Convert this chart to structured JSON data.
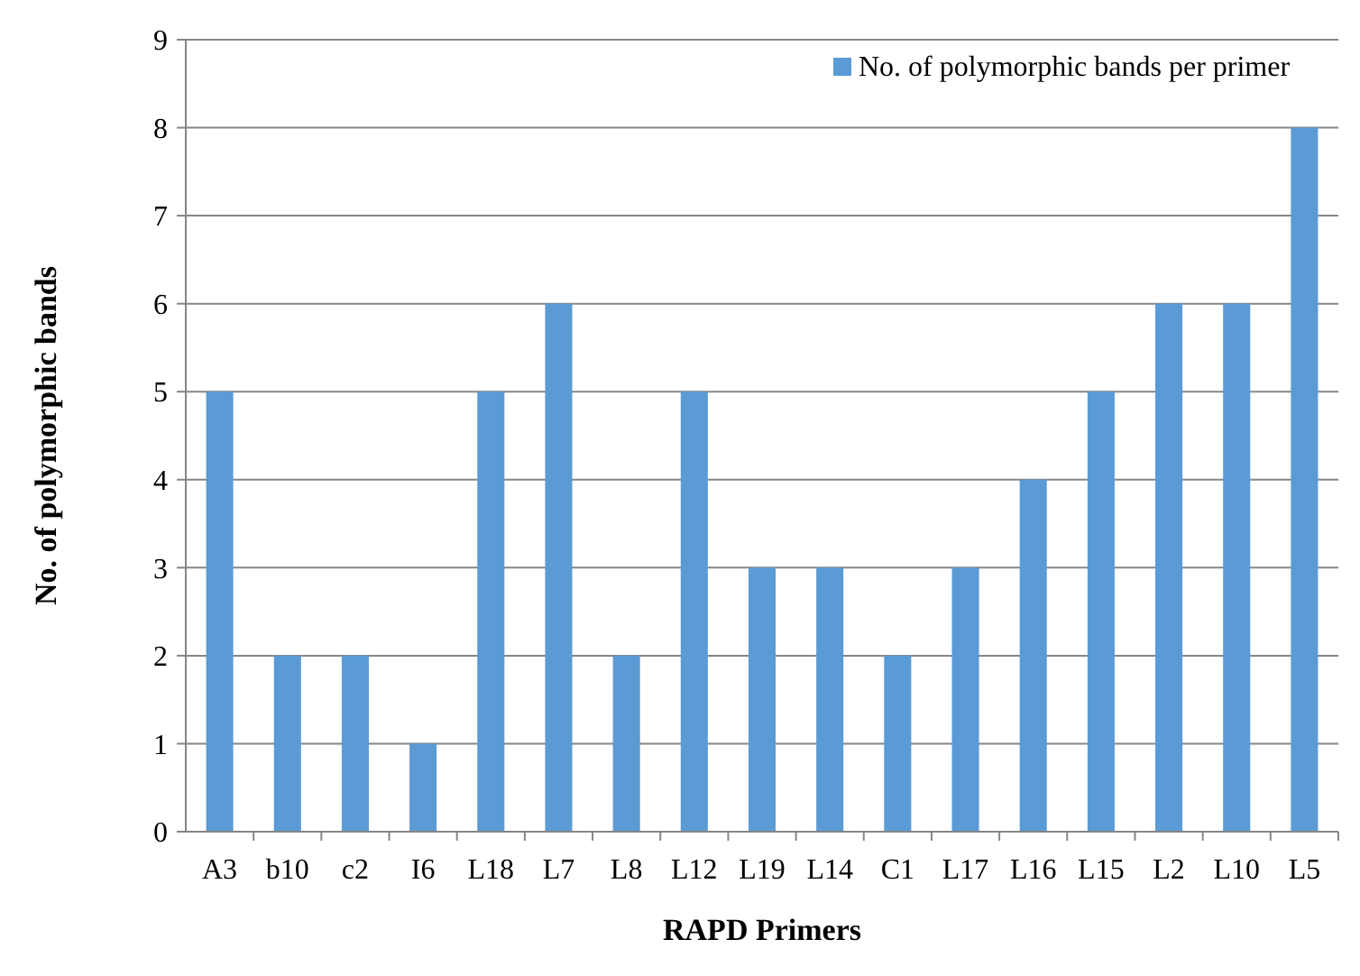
{
  "chart_data": {
    "type": "bar",
    "xlabel": "RAPD Primers",
    "ylabel": "No. of polymorphic bands",
    "categories": [
      "A3",
      "b10",
      "c2",
      "I6",
      "L18",
      "L7",
      "L8",
      "L12",
      "L19",
      "L14",
      "C1",
      "L17",
      "L16",
      "L15",
      "L2",
      "L10",
      "L5"
    ],
    "series": [
      {
        "name": "No. of polymorphic bands per primer",
        "color": "#5b9bd5",
        "values": [
          5,
          2,
          2,
          1,
          5,
          6,
          2,
          5,
          3,
          3,
          2,
          3,
          4,
          5,
          6,
          6,
          8
        ]
      }
    ],
    "ylim": [
      0,
      9
    ],
    "yticks": [
      0,
      1,
      2,
      3,
      4,
      5,
      6,
      7,
      8,
      9
    ],
    "grid": "y",
    "legend": "top right"
  }
}
